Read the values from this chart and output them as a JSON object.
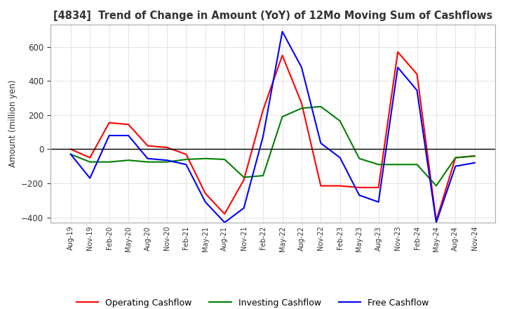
{
  "title": "[4834]  Trend of Change in Amount (YoY) of 12Mo Moving Sum of Cashflows",
  "ylabel": "Amount (million yen)",
  "x_labels": [
    "Aug-19",
    "Nov-19",
    "Feb-20",
    "May-20",
    "Aug-20",
    "Nov-20",
    "Feb-21",
    "May-21",
    "Aug-21",
    "Nov-21",
    "Feb-22",
    "May-22",
    "Aug-22",
    "Nov-22",
    "Feb-23",
    "May-23",
    "Aug-23",
    "Nov-23",
    "Feb-24",
    "May-24",
    "Aug-24",
    "Nov-24"
  ],
  "operating": [
    0,
    -50,
    155,
    145,
    20,
    10,
    -30,
    -260,
    -380,
    -180,
    230,
    550,
    270,
    -215,
    -215,
    -225,
    -225,
    570,
    440,
    -420,
    -50,
    -40
  ],
  "investing": [
    -30,
    -75,
    -75,
    -65,
    -75,
    -75,
    -60,
    -55,
    -60,
    -165,
    -155,
    190,
    240,
    250,
    165,
    -55,
    -90,
    -90,
    -90,
    -215,
    -50,
    -40
  ],
  "free": [
    -30,
    -170,
    80,
    80,
    -55,
    -65,
    -90,
    -310,
    -430,
    -345,
    75,
    690,
    480,
    35,
    -50,
    -270,
    -310,
    480,
    345,
    -430,
    -100,
    -80
  ],
  "operating_color": "#ff0000",
  "investing_color": "#008000",
  "free_color": "#0000ff",
  "ylim": [
    -430,
    730
  ],
  "yticks": [
    -400,
    -200,
    0,
    200,
    400,
    600
  ],
  "background_color": "#ffffff",
  "grid_color": "#aaaaaa"
}
